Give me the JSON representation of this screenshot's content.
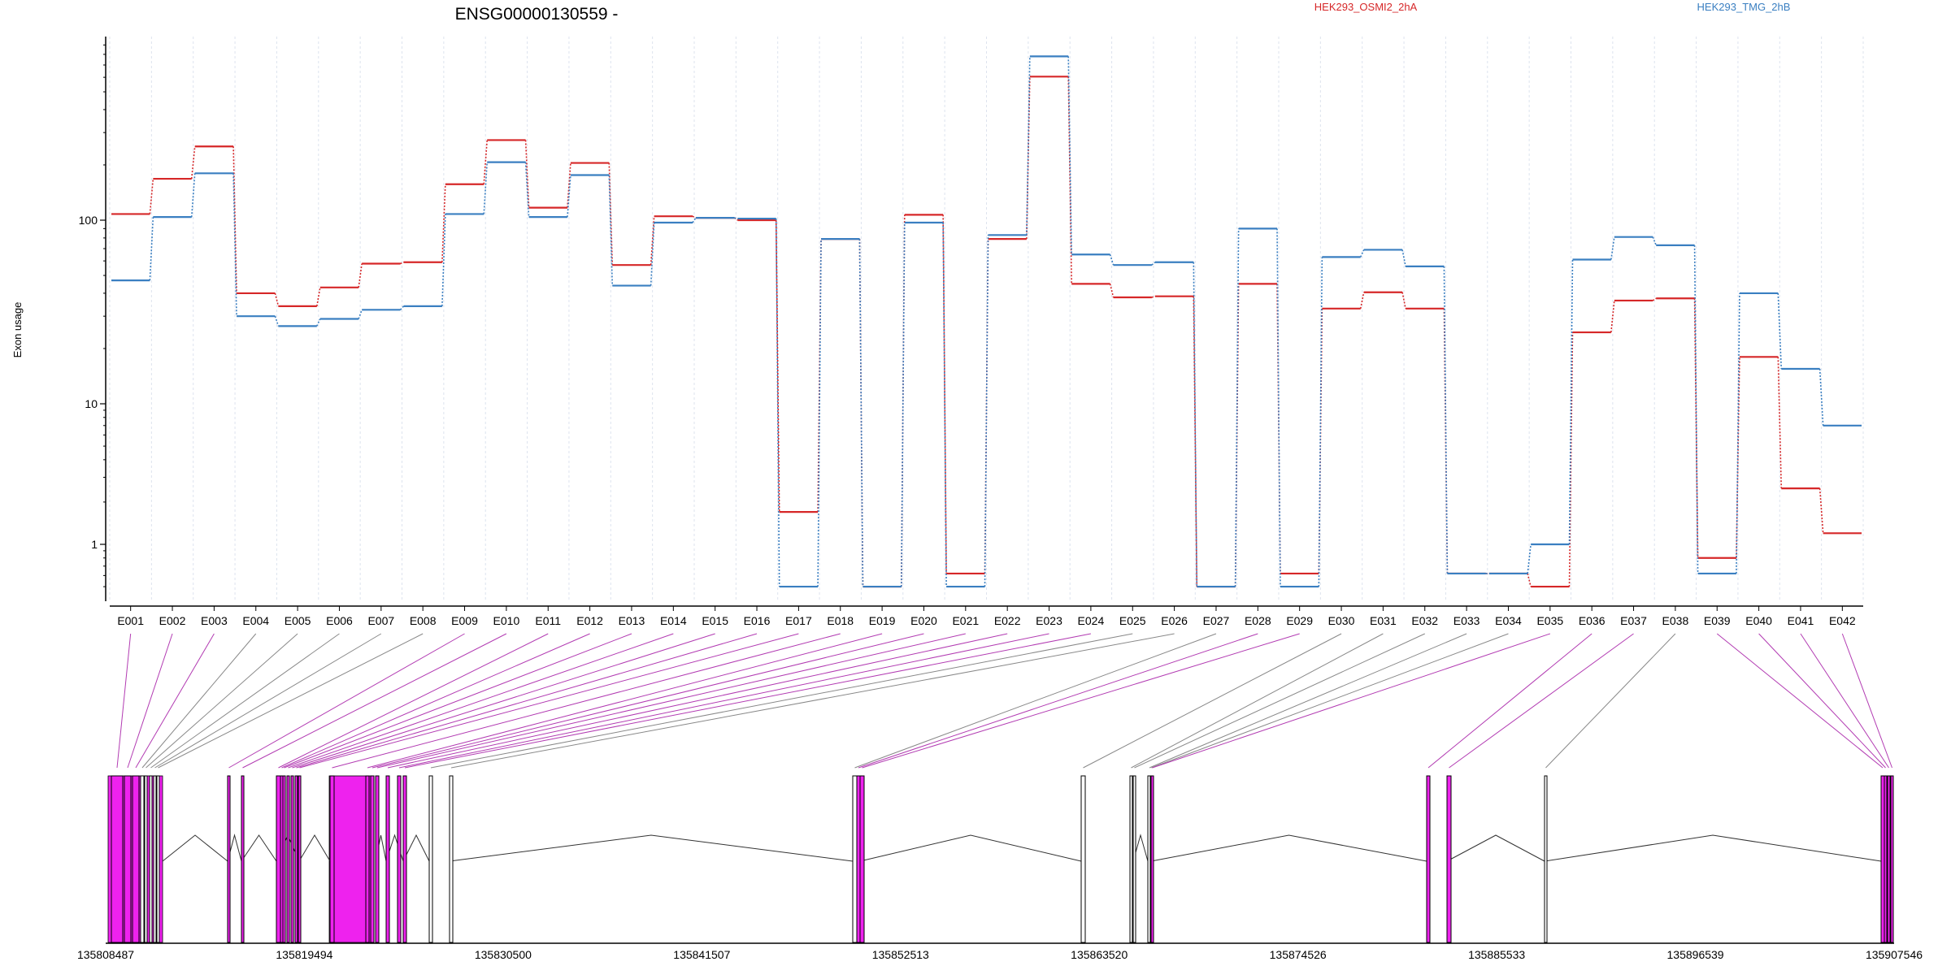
{
  "chart_data": {
    "type": "line",
    "title": "ENSG00000130559 -",
    "ylabel": "Exon usage",
    "yscale": "log",
    "yticks": [
      "1",
      "10",
      "100"
    ],
    "grid": "vertical dotted",
    "categories": [
      "E001",
      "E002",
      "E003",
      "E004",
      "E005",
      "E006",
      "E007",
      "E008",
      "E009",
      "E010",
      "E011",
      "E012",
      "E013",
      "E014",
      "E015",
      "E016",
      "E017",
      "E018",
      "E019",
      "E020",
      "E021",
      "E022",
      "E023",
      "E024",
      "E025",
      "E026",
      "E027",
      "E028",
      "E029",
      "E030",
      "E031",
      "E032",
      "E033",
      "E034",
      "E035",
      "E036",
      "E037",
      "E038",
      "E039",
      "E040",
      "E041",
      "E042"
    ],
    "series": [
      {
        "name": "HEK293_OSMI2_2hA",
        "color": "#d62728",
        "values": [
          108,
          168,
          252,
          40,
          34,
          43,
          58,
          59,
          157,
          273,
          117,
          205,
          57,
          105,
          103,
          100,
          1.7,
          79,
          0.5,
          107,
          0.62,
          79,
          605,
          45,
          38,
          38.5,
          0.5,
          45,
          0.62,
          33,
          40.5,
          33,
          0.62,
          0.62,
          0.5,
          24.5,
          36.5,
          37.5,
          0.8,
          18,
          2.5,
          1.2
        ]
      },
      {
        "name": "HEK293_TMG_2hB",
        "color": "#3a7fc1",
        "values": [
          47,
          104,
          180,
          30,
          26.5,
          29,
          32.5,
          34,
          108,
          207,
          104,
          176,
          44,
          97,
          103,
          102,
          0.5,
          79,
          0.5,
          97,
          0.5,
          83,
          780,
          65,
          57,
          59,
          0.5,
          90,
          0.5,
          63,
          69,
          56,
          0.62,
          0.62,
          1,
          61,
          81,
          73,
          0.62,
          40,
          15.5,
          7
        ]
      }
    ],
    "coordinate_ticks": [
      "135808487",
      "135819494",
      "135830500",
      "135841507",
      "135852513",
      "135863520",
      "135874526",
      "135885533",
      "135896539",
      "135907546"
    ],
    "gene_model": {
      "exon_highlight_color": "#ee22ee",
      "exon_highlighted": [
        true,
        true,
        true,
        false,
        false,
        false,
        false,
        false,
        true,
        true,
        true,
        true,
        true,
        true,
        true,
        true,
        true,
        true,
        true,
        true,
        true,
        true,
        true,
        true,
        false,
        false,
        false,
        true,
        true,
        false,
        false,
        false,
        false,
        false,
        true,
        true,
        true,
        false,
        true,
        true,
        true,
        true
      ]
    }
  }
}
